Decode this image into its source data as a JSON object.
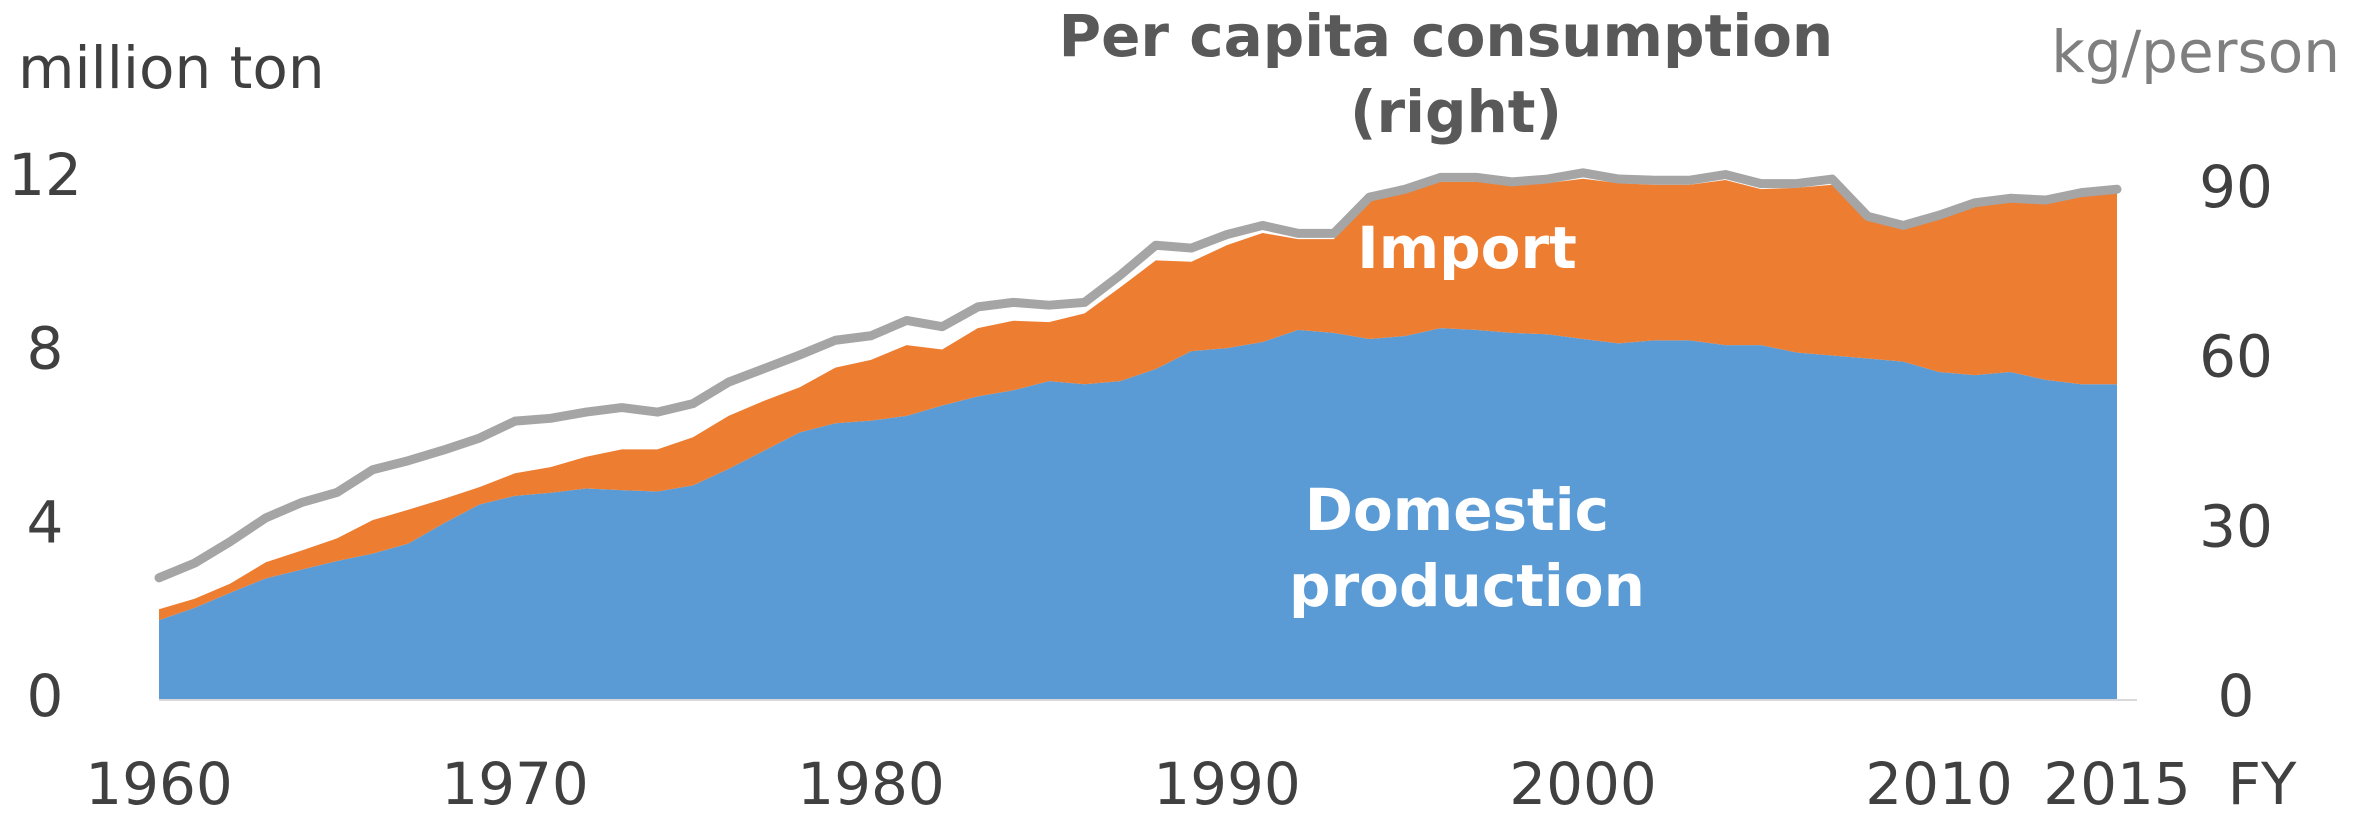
{
  "chart_data": {
    "type": "stacked_area",
    "y_label": "million ton",
    "y2_label": "kg/person",
    "x_unit_label": "FY",
    "x": [
      1960,
      1961,
      1962,
      1963,
      1964,
      1965,
      1966,
      1967,
      1968,
      1969,
      1970,
      1971,
      1972,
      1973,
      1974,
      1975,
      1976,
      1977,
      1978,
      1979,
      1980,
      1981,
      1982,
      1983,
      1984,
      1985,
      1986,
      1987,
      1988,
      1989,
      1990,
      1991,
      1992,
      1993,
      1994,
      1995,
      1996,
      1997,
      1998,
      1999,
      2000,
      2001,
      2002,
      2003,
      2004,
      2005,
      2006,
      2007,
      2008,
      2009,
      2010,
      2011,
      2012,
      2013,
      2014,
      2015
    ],
    "xlim": [
      1960,
      2015
    ],
    "xticks": [
      1960,
      1970,
      1980,
      1990,
      2000,
      2010,
      2015
    ],
    "ylim": [
      0,
      12.5
    ],
    "yticks": [
      0,
      4,
      8,
      12
    ],
    "y2lim": [
      0,
      96
    ],
    "y2ticks": [
      0,
      30,
      60,
      90
    ],
    "series": [
      {
        "name": "Domestic production",
        "color": "#5b9bd5",
        "values": [
          1.84,
          2.12,
          2.47,
          2.8,
          3.0,
          3.2,
          3.37,
          3.6,
          4.07,
          4.5,
          4.7,
          4.77,
          4.87,
          4.83,
          4.8,
          4.94,
          5.32,
          5.74,
          6.16,
          6.37,
          6.43,
          6.54,
          6.78,
          6.99,
          7.13,
          7.34,
          7.27,
          7.34,
          7.62,
          8.03,
          8.1,
          8.24,
          8.52,
          8.45,
          8.31,
          8.38,
          8.56,
          8.52,
          8.45,
          8.42,
          8.31,
          8.21,
          8.28,
          8.28,
          8.17,
          8.17,
          8.0,
          7.93,
          7.86,
          7.79,
          7.55,
          7.48,
          7.55,
          7.37,
          7.27,
          7.27
        ]
      },
      {
        "name": "Import",
        "color": "#ed7d31",
        "values": [
          0.25,
          0.21,
          0.21,
          0.37,
          0.44,
          0.52,
          0.77,
          0.78,
          0.56,
          0.4,
          0.52,
          0.59,
          0.73,
          0.94,
          0.97,
          1.11,
          1.22,
          1.15,
          1.04,
          1.28,
          1.4,
          1.63,
          1.29,
          1.57,
          1.6,
          1.36,
          1.63,
          2.16,
          2.5,
          2.06,
          2.37,
          2.51,
          2.09,
          2.16,
          3.2,
          3.31,
          3.37,
          3.41,
          3.38,
          3.48,
          3.69,
          3.69,
          3.58,
          3.58,
          3.8,
          3.59,
          3.79,
          3.93,
          3.24,
          3.13,
          3.65,
          4.0,
          4.0,
          4.14,
          4.31,
          4.45
        ]
      },
      {
        "name": "Per capita consumption (right)",
        "color": "#a5a5a5",
        "axis": "y2",
        "values": [
          21.6,
          24.2,
          28,
          32.2,
          34.9,
          36.7,
          40.7,
          42.3,
          44.2,
          46.3,
          49.3,
          49.8,
          50.9,
          51.7,
          50.9,
          52.4,
          56.2,
          58.6,
          61,
          63.6,
          64.4,
          67.1,
          66,
          69.5,
          70.3,
          69.8,
          70.3,
          75.1,
          80.4,
          79.9,
          82.3,
          83.9,
          82.5,
          82.5,
          88.9,
          90.3,
          92.4,
          92.4,
          91.6,
          92.1,
          93.2,
          92.1,
          91.9,
          91.9,
          92.9,
          91.3,
          91.3,
          92.1,
          85.5,
          83.9,
          85.7,
          87.9,
          88.7,
          88.4,
          89.7,
          90.3
        ]
      }
    ]
  }
}
